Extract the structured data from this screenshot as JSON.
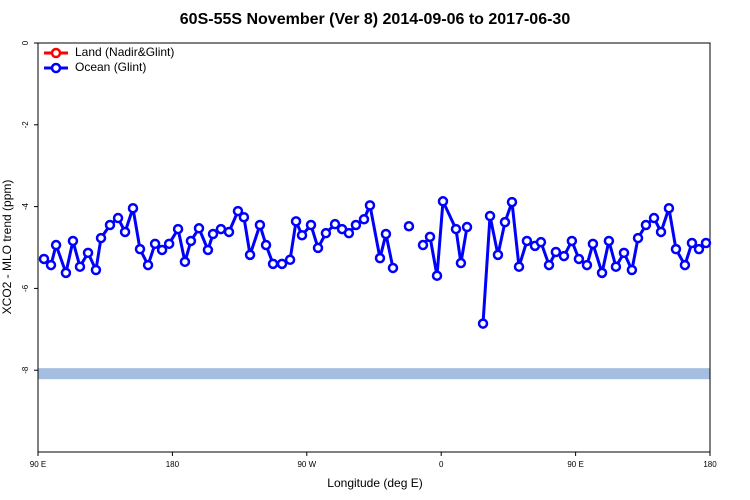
{
  "chart_data": {
    "type": "line",
    "title": "60S-55S November (Ver 8)   2014-09-06 to 2017-06-30",
    "x_label": "Longitude (deg E)",
    "y_label": "XCO2 - MLO trend (ppm)",
    "xlim": [
      90,
      540
    ],
    "xticks": [
      {
        "value": 90,
        "label": "90 E"
      },
      180,
      {
        "value": 270,
        "label": "90 W"
      },
      {
        "value": 360,
        "label": "0"
      },
      {
        "value": 450,
        "label": "90 E"
      },
      {
        "value": 540,
        "label": "180"
      }
    ],
    "ylim": [
      -10,
      0
    ],
    "yticks": [
      0,
      -2,
      -4,
      -6,
      -8
    ],
    "legend": "upper left",
    "band": {
      "ylim": [
        -8.22,
        -7.95
      ],
      "color": "#a5bde0"
    },
    "series": [
      {
        "name": "Land (Nadir&Glint)",
        "color": "#ff0000",
        "x": [],
        "values": []
      },
      {
        "name": "Ocean (Glint)",
        "color": "#0000ff",
        "x": [
          94.0,
          98.7,
          102.1,
          108.7,
          113.4,
          118.1,
          123.5,
          128.8,
          132.2,
          138.2,
          143.6,
          148.3,
          153.6,
          158.3,
          163.7,
          168.4,
          173.1,
          177.8,
          183.8,
          188.4,
          192.4,
          197.8,
          203.8,
          207.2,
          212.5,
          217.9,
          223.9,
          227.9,
          232.0,
          238.6,
          242.7,
          247.4,
          253.4,
          258.8,
          262.8,
          266.8,
          272.8,
          277.5,
          282.8,
          288.9,
          293.6,
          298.2,
          302.9,
          308.3,
          312.3,
          319.0,
          323.0,
          327.7,
          null,
          338.4,
          null,
          347.8,
          352.5,
          357.2,
          361.2,
          369.9,
          373.2,
          377.3,
          null,
          388.0,
          392.7,
          398.0,
          402.7,
          407.4,
          412.1,
          417.4,
          422.8,
          426.8,
          432.2,
          436.8,
          442.2,
          447.5,
          452.2,
          457.6,
          461.6,
          467.7,
          472.3,
          477.0,
          482.4,
          487.7,
          491.8,
          497.1,
          502.5,
          507.2,
          512.5,
          517.2,
          523.2,
          527.9,
          532.6,
          537.3
        ],
        "values": [
          -5.28,
          -5.43,
          -4.94,
          -5.62,
          -4.84,
          -5.47,
          -5.13,
          -5.55,
          -4.77,
          -4.45,
          -4.28,
          -4.62,
          -4.04,
          -5.04,
          -5.43,
          -4.91,
          -5.06,
          -4.91,
          -4.55,
          -5.35,
          -4.84,
          -4.53,
          -5.06,
          -4.67,
          -4.55,
          -4.62,
          -4.11,
          -4.26,
          -5.18,
          -4.45,
          -4.94,
          -5.4,
          -5.4,
          -5.3,
          -4.36,
          -4.7,
          -4.45,
          -5.01,
          -4.65,
          -4.43,
          -4.55,
          -4.65,
          -4.45,
          -4.31,
          -3.97,
          -5.26,
          -4.67,
          -5.5,
          null,
          -4.48,
          null,
          -4.94,
          -4.74,
          -5.69,
          -3.87,
          -4.55,
          -5.38,
          -4.5,
          null,
          -6.86,
          -4.23,
          -5.18,
          -4.38,
          -3.89,
          -5.47,
          -4.84,
          -4.96,
          -4.87,
          -5.43,
          -5.11,
          -5.21,
          -4.84,
          -5.28,
          -5.43,
          -4.91,
          -5.62,
          -4.84,
          -5.47,
          -5.13,
          -5.55,
          -4.77,
          -4.45,
          -4.28,
          -4.62,
          -4.04,
          -5.04,
          -5.43,
          -4.89,
          -5.04,
          -4.89
        ]
      }
    ]
  }
}
